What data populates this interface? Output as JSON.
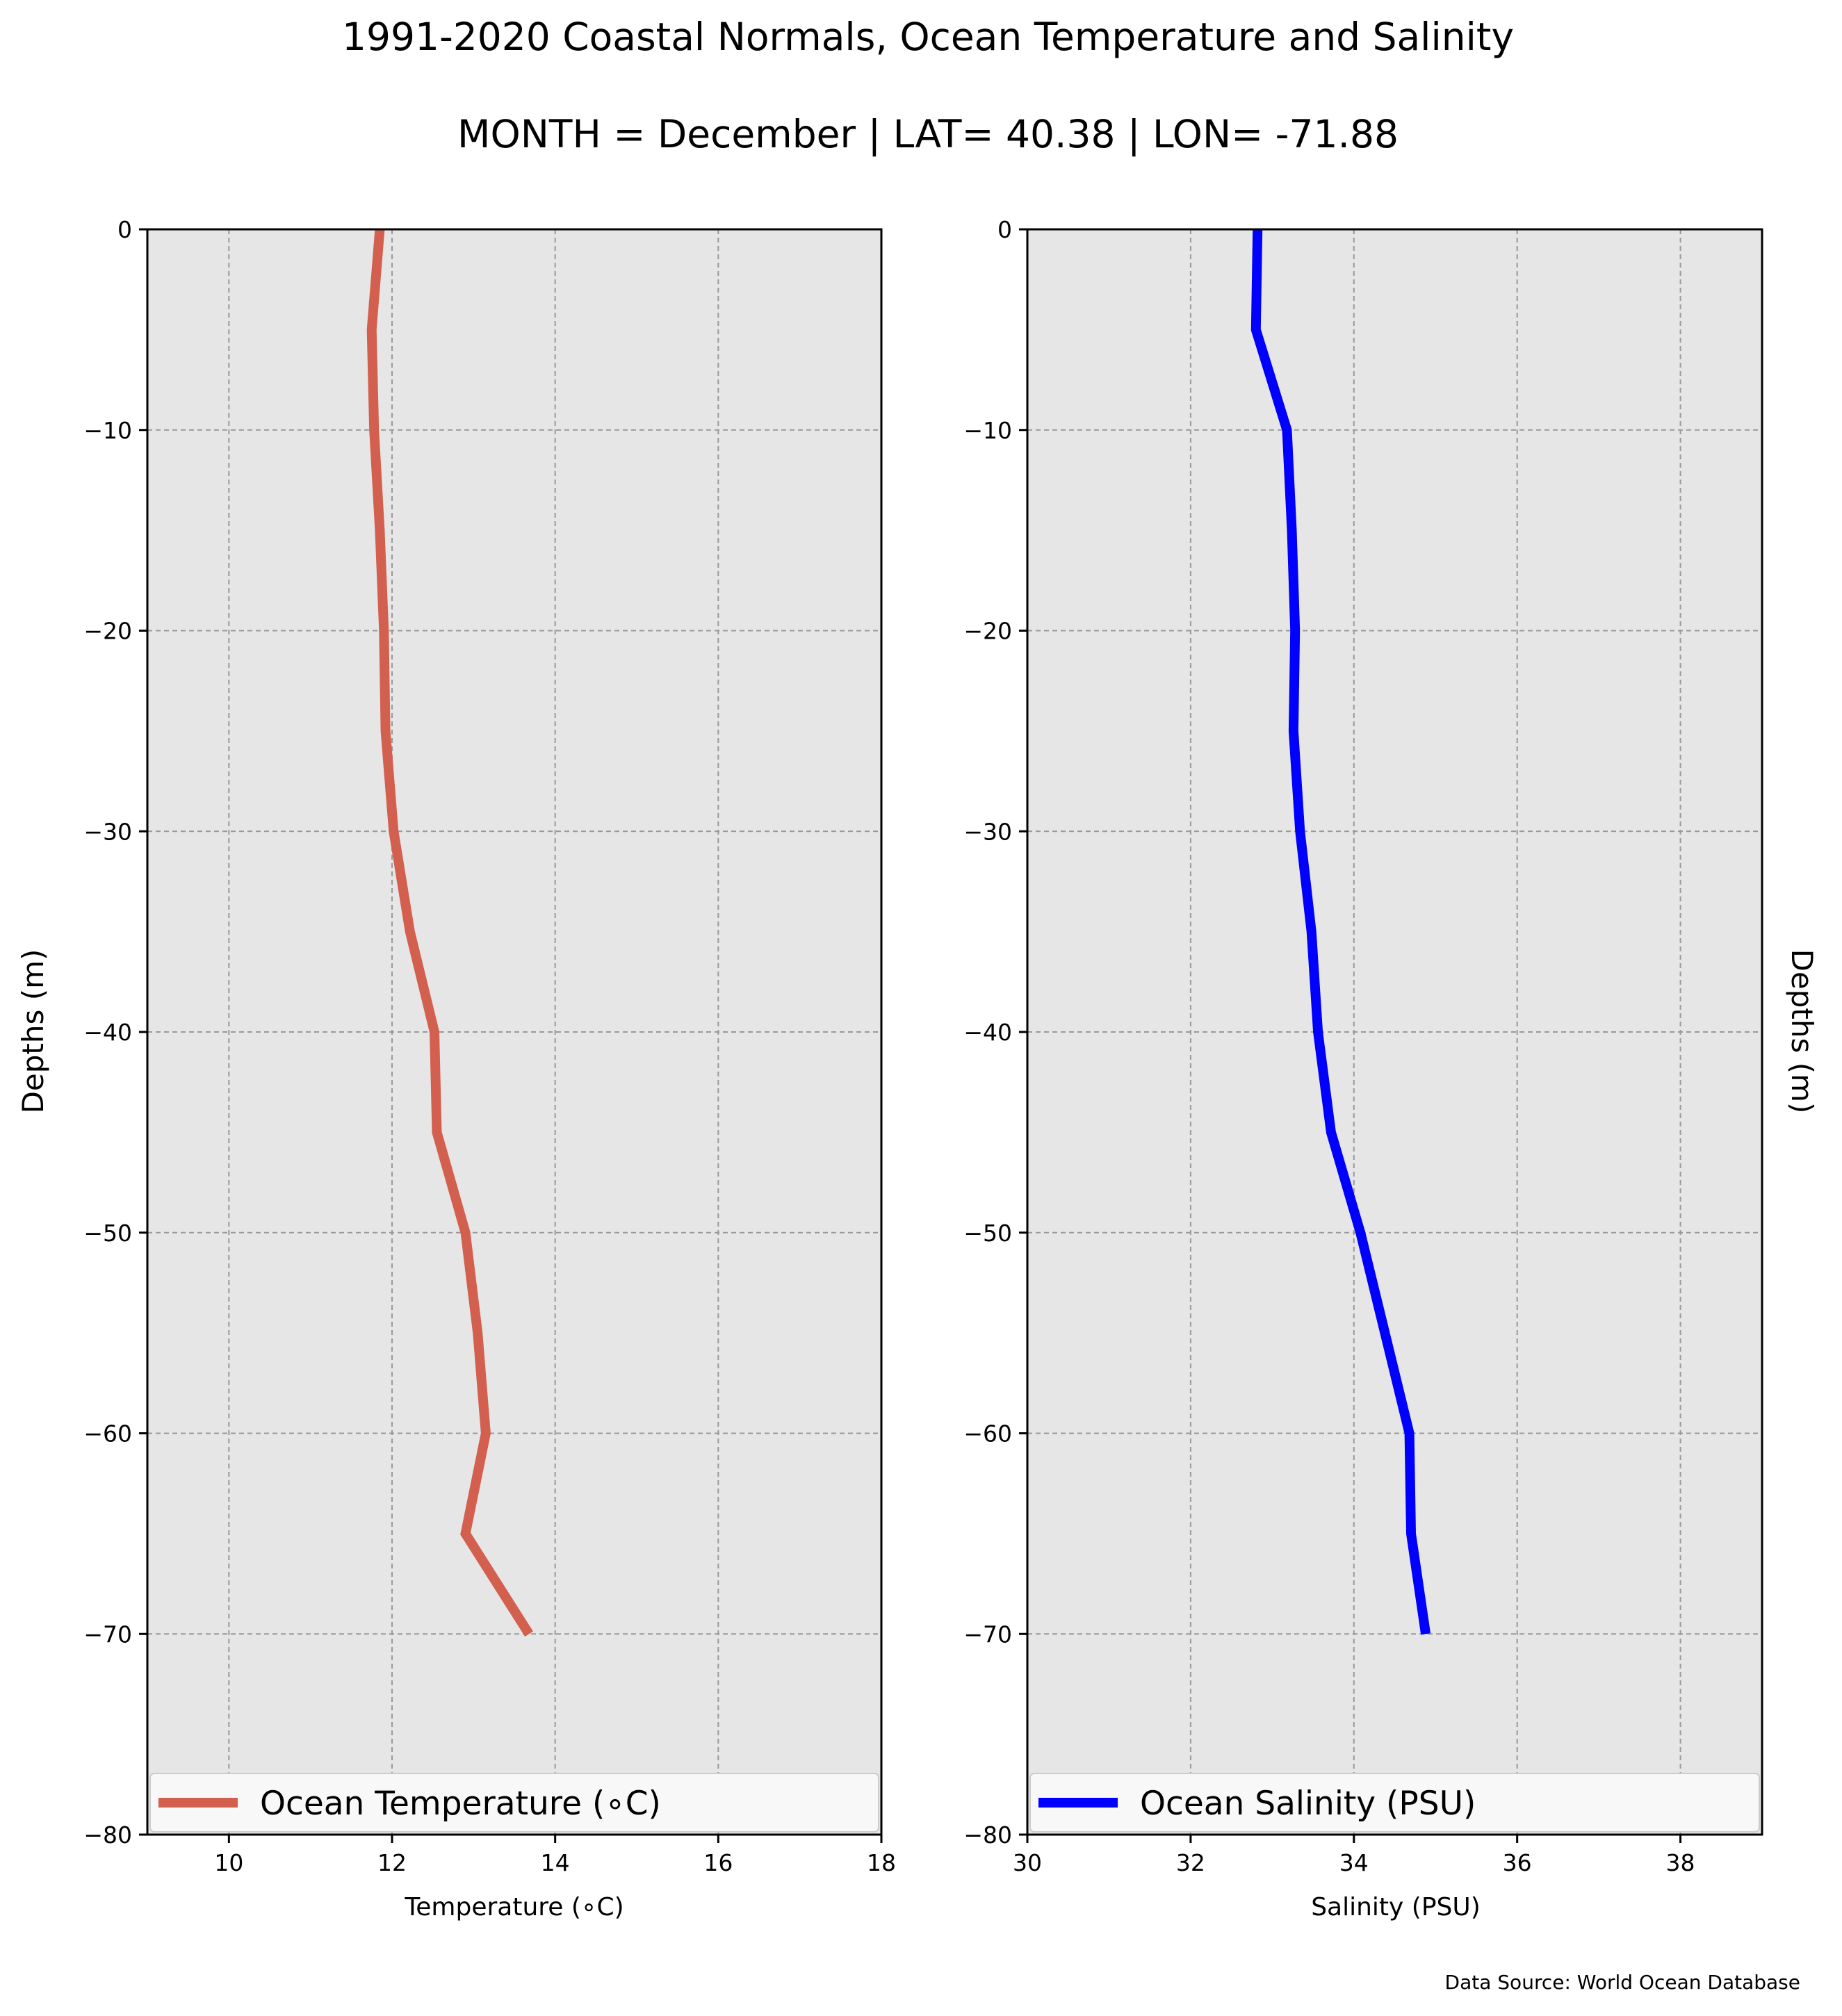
{
  "figure": {
    "title": "1991-2020 Coastal Normals, Ocean Temperature and Salinity",
    "subtitle": "MONTH = December | LAT= 40.38 | LON= -71.88",
    "source_note": "Data Source: World Ocean Database"
  },
  "chart_data": [
    {
      "type": "line",
      "panel": "left",
      "xlabel": "Temperature ($^\\circ$C)",
      "xlabel_display": "Temperature (∘C)",
      "ylabel": "Depths (m)",
      "xlim": [
        9,
        18
      ],
      "ylim": [
        -80,
        0
      ],
      "xticks": [
        10,
        12,
        14,
        16,
        18
      ],
      "yticks": [
        0,
        -10,
        -20,
        -30,
        -40,
        -50,
        -60,
        -70,
        -80
      ],
      "grid": true,
      "legend_position": "bottom",
      "color": "#d35f4f",
      "series": [
        {
          "name": "Ocean Temperature (∘C)",
          "x": [
            11.85,
            11.75,
            11.78,
            11.85,
            11.9,
            11.92,
            12.02,
            12.22,
            12.52,
            12.55,
            12.9,
            13.05,
            13.15,
            12.9,
            13.68
          ],
          "y": [
            0,
            -5,
            -10,
            -15,
            -20,
            -25,
            -30,
            -35,
            -40,
            -45,
            -50,
            -55,
            -60,
            -65,
            -70
          ]
        }
      ]
    },
    {
      "type": "line",
      "panel": "right",
      "xlabel": "Salinity (PSU)",
      "ylabel": "Depths (m)",
      "xlim": [
        30,
        39
      ],
      "ylim": [
        -80,
        0
      ],
      "xticks": [
        30,
        32,
        34,
        36,
        38
      ],
      "yticks": [
        0,
        -10,
        -20,
        -30,
        -40,
        -50,
        -60,
        -70,
        -80
      ],
      "grid": true,
      "legend_position": "bottom",
      "color": "#0000ff",
      "series": [
        {
          "name": "Ocean Salinity (PSU)",
          "x": [
            32.82,
            32.8,
            33.18,
            33.24,
            33.28,
            33.26,
            33.34,
            33.48,
            33.56,
            33.72,
            34.08,
            34.38,
            34.68,
            34.7,
            34.88
          ],
          "y": [
            0,
            -5,
            -10,
            -15,
            -20,
            -25,
            -30,
            -35,
            -40,
            -45,
            -50,
            -55,
            -60,
            -65,
            -70
          ]
        }
      ]
    }
  ]
}
